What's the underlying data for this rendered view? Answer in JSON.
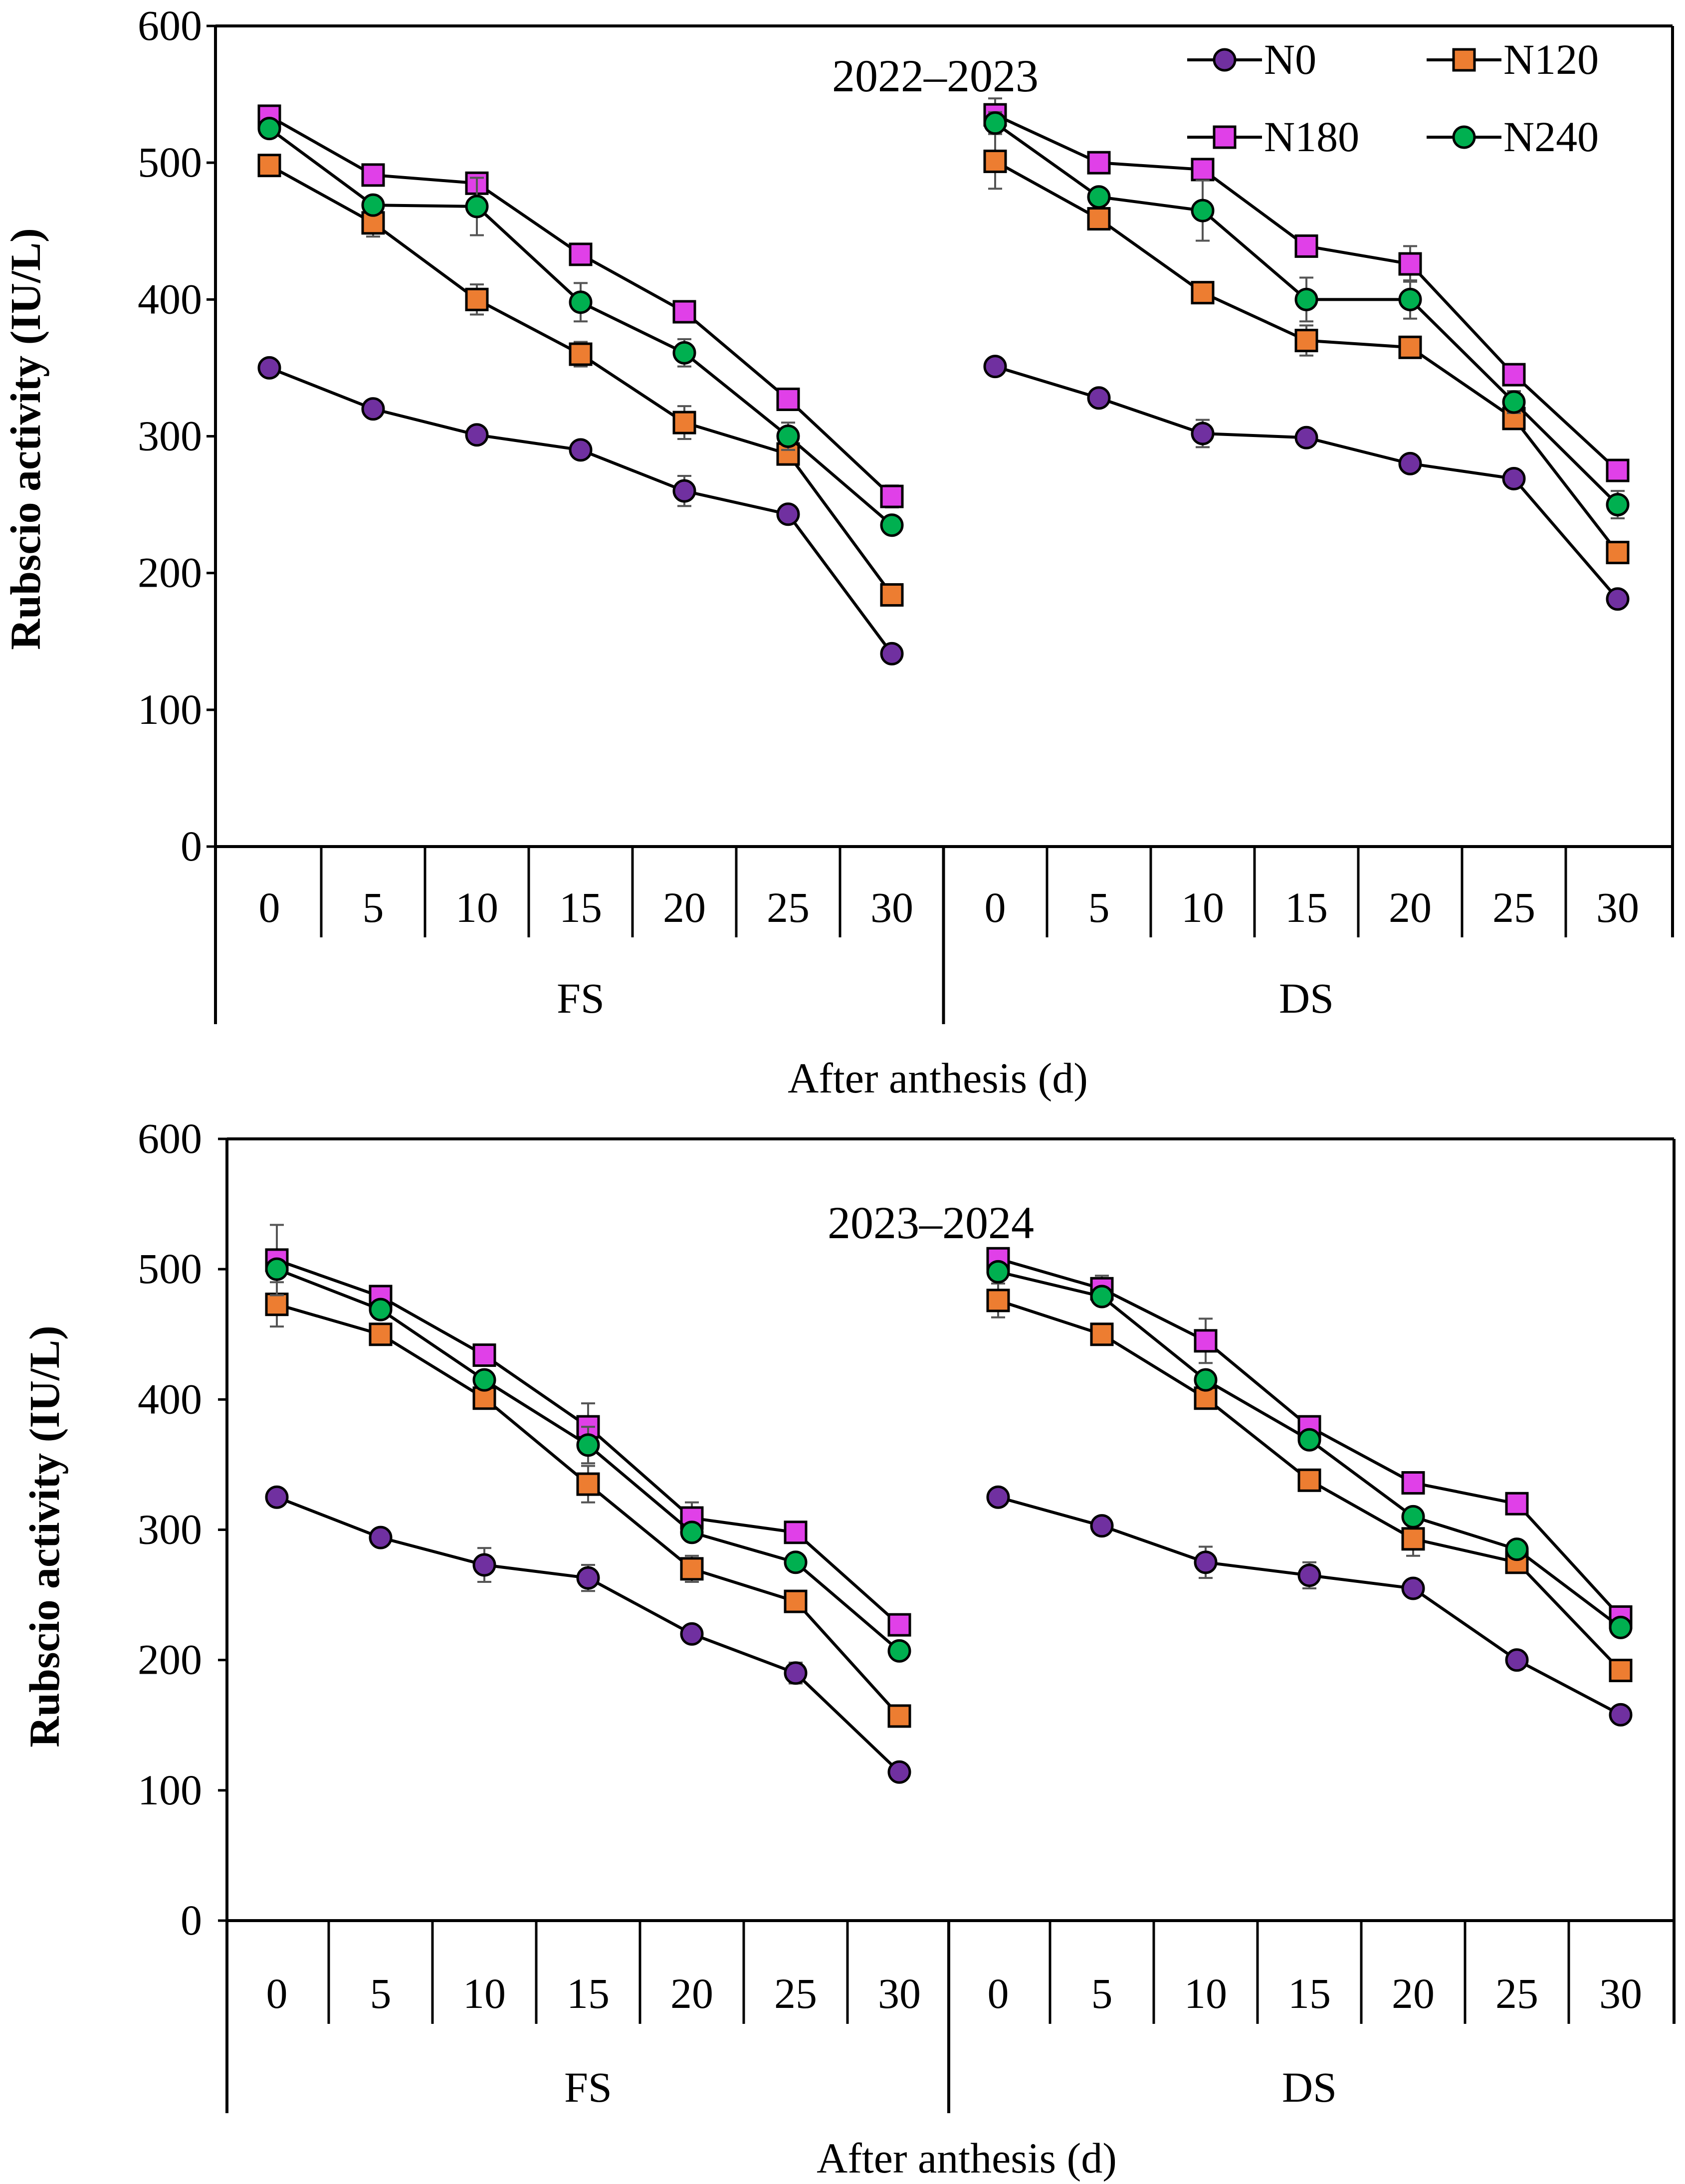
{
  "legend": {
    "entries": [
      {
        "name": "N0",
        "color": "#7030A0",
        "marker": "circle"
      },
      {
        "name": "N120",
        "color": "#ED7D31",
        "marker": "square"
      },
      {
        "name": "N180",
        "color": "#E040E8",
        "marker": "square"
      },
      {
        "name": "N240",
        "color": "#00B050",
        "marker": "circle"
      }
    ]
  },
  "chart_data": [
    {
      "type": "line",
      "title": "2022–2023",
      "xlabel": "After anthesis (d)",
      "ylabel": "Rubscio activity  (IU/L)",
      "ylim": [
        0,
        600
      ],
      "yticks": [
        "0",
        "100",
        "200",
        "300",
        "400",
        "500",
        "600"
      ],
      "groups": [
        {
          "name": "FS",
          "categories": [
            "0",
            "5",
            "10",
            "15",
            "20",
            "25",
            "30"
          ]
        },
        {
          "name": "DS",
          "categories": [
            "0",
            "5",
            "10",
            "15",
            "20",
            "25",
            "30"
          ]
        }
      ],
      "series": [
        {
          "name": "N0",
          "values": {
            "FS": [
              350,
              320,
              301,
              290,
              260,
              243,
              141
            ],
            "DS": [
              351,
              328,
              302,
              299,
              280,
              269,
              181
            ]
          },
          "errors": {
            "FS": [
              4,
              3,
              5,
              4,
              11,
              5,
              6
            ],
            "DS": [
              3,
              3,
              10,
              6,
              4,
              3,
              6
            ]
          }
        },
        {
          "name": "N120",
          "values": {
            "FS": [
              498,
              456,
              400,
              360,
              310,
              287,
              184
            ],
            "DS": [
              501,
              459,
              405,
              370,
              365,
              313,
              215
            ]
          },
          "errors": {
            "FS": [
              5,
              10,
              11,
              9,
              12,
              5,
              5
            ],
            "DS": [
              20,
              6,
              4,
              11,
              4,
              5,
              5
            ]
          }
        },
        {
          "name": "N180",
          "values": {
            "FS": [
              534,
              491,
              485,
              433,
              391,
              327,
              256
            ],
            "DS": [
              535,
              500,
              495,
              439,
              426,
              345,
              275
            ]
          },
          "errors": {
            "FS": [
              4,
              4,
              5,
              4,
              4,
              4,
              8
            ],
            "DS": [
              12,
              4,
              5,
              4,
              13,
              4,
              4
            ]
          }
        },
        {
          "name": "N240",
          "values": {
            "FS": [
              525,
              469,
              468,
              398,
              361,
              300,
              235
            ],
            "DS": [
              529,
              475,
              465,
              400,
              400,
              325,
              250
            ]
          },
          "errors": {
            "FS": [
              4,
              4,
              21,
              14,
              10,
              10,
              4
            ],
            "DS": [
              8,
              5,
              22,
              16,
              14,
              8,
              10
            ]
          }
        }
      ]
    },
    {
      "type": "line",
      "title": "2023–2024",
      "xlabel": "After anthesis (d)",
      "ylabel": "Rubscio activity (IU/L)",
      "ylim": [
        0,
        600
      ],
      "yticks": [
        "0",
        "100",
        "200",
        "300",
        "400",
        "500",
        "600"
      ],
      "groups": [
        {
          "name": "FS",
          "categories": [
            "0",
            "5",
            "10",
            "15",
            "20",
            "25",
            "30"
          ]
        },
        {
          "name": "DS",
          "categories": [
            "0",
            "5",
            "10",
            "15",
            "20",
            "25",
            "30"
          ]
        }
      ],
      "series": [
        {
          "name": "N0",
          "values": {
            "FS": [
              325,
              294,
              273,
              263,
              220,
              190,
              114
            ],
            "DS": [
              325,
              303,
              275,
              265,
              255,
              200,
              158
            ]
          },
          "errors": {
            "FS": [
              4,
              3,
              13,
              10,
              3,
              8,
              3
            ],
            "DS": [
              3,
              4,
              12,
              10,
              3,
              3,
              3
            ]
          }
        },
        {
          "name": "N120",
          "values": {
            "FS": [
              473,
              450,
              401,
              335,
              270,
              245,
              157
            ],
            "DS": [
              476,
              450,
              401,
              338,
              293,
              275,
              192
            ]
          },
          "errors": {
            "FS": [
              17,
              5,
              4,
              14,
              10,
              6,
              5
            ],
            "DS": [
              13,
              5,
              5,
              5,
              13,
              5,
              5
            ]
          }
        },
        {
          "name": "N180",
          "values": {
            "FS": [
              507,
              479,
              434,
              379,
              309,
              298,
              227
            ],
            "DS": [
              508,
              485,
              445,
              379,
              336,
              320,
              233
            ]
          },
          "errors": {
            "FS": [
              27,
              5,
              5,
              18,
              12,
              4,
              4
            ],
            "DS": [
              8,
              10,
              17,
              4,
              4,
              4,
              4
            ]
          }
        },
        {
          "name": "N240",
          "values": {
            "FS": [
              500,
              469,
              415,
              365,
              298,
              275,
              207
            ],
            "DS": [
              498,
              479,
              415,
              369,
              310,
              285,
              225
            ]
          },
          "errors": {
            "FS": [
              4,
              4,
              4,
              14,
              4,
              4,
              4
            ],
            "DS": [
              4,
              4,
              4,
              4,
              4,
              4,
              4
            ]
          }
        }
      ]
    }
  ]
}
